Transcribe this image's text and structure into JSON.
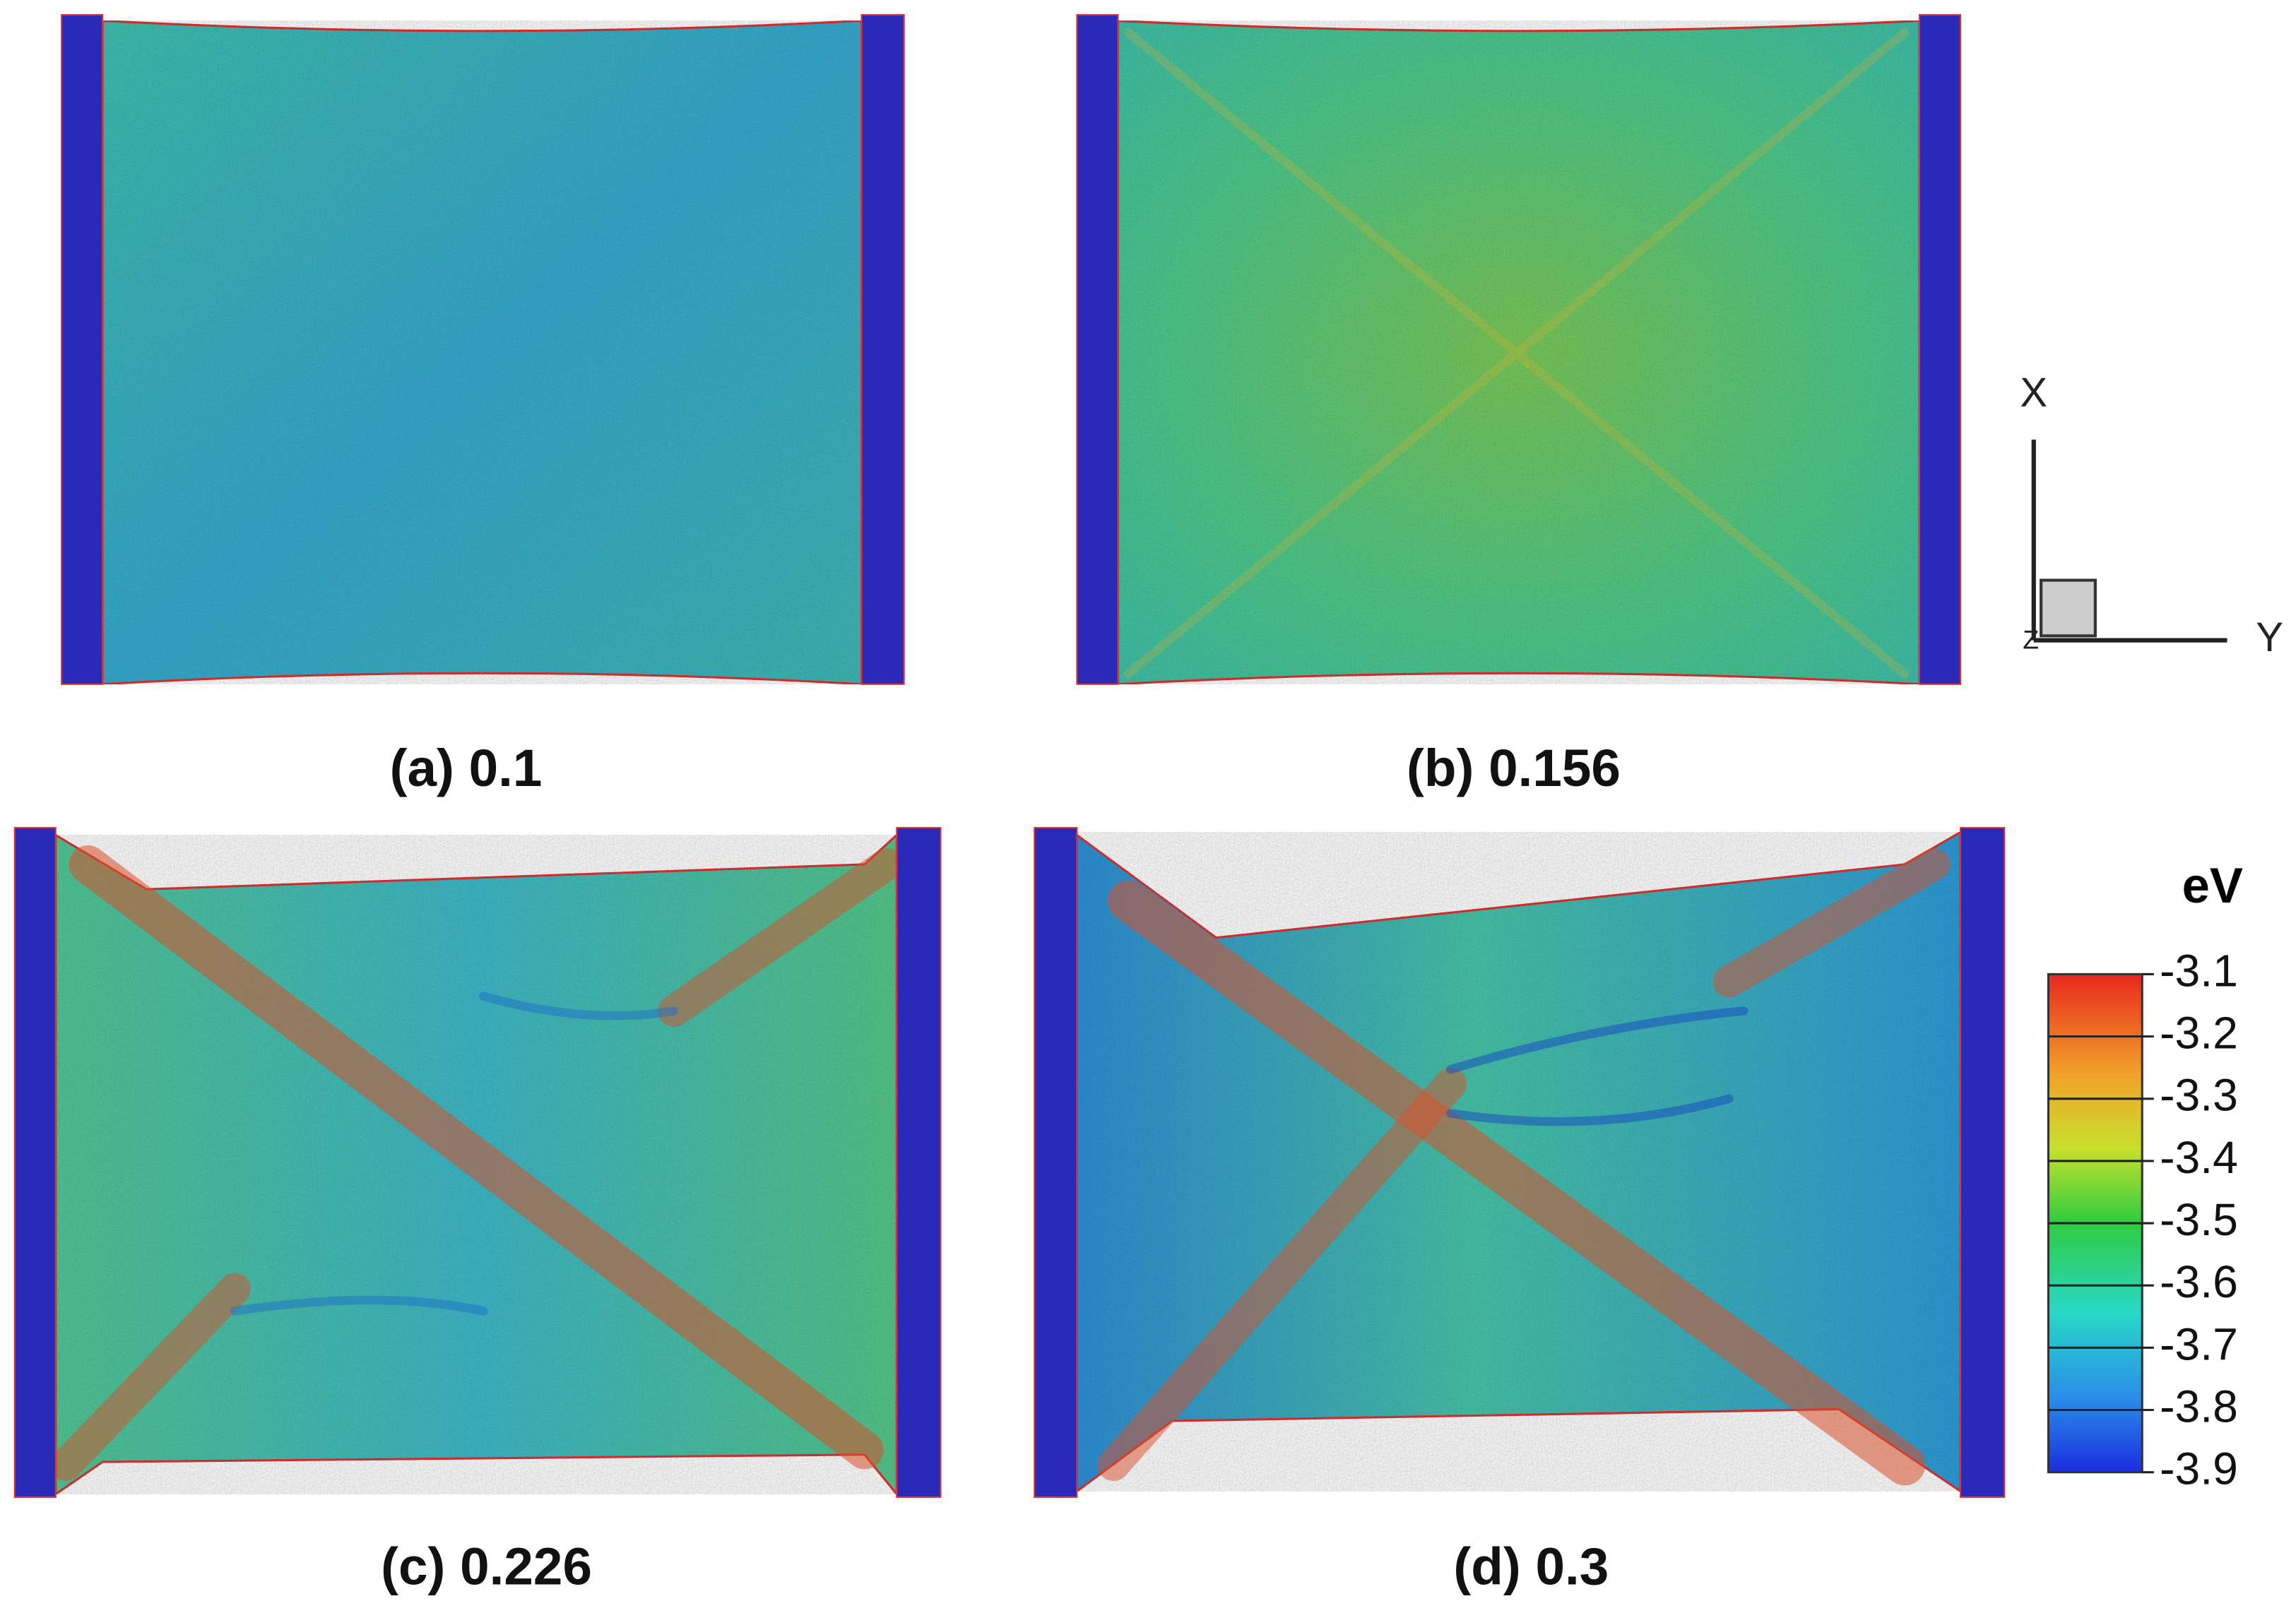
{
  "panels": [
    {
      "label": "(a) 0.1"
    },
    {
      "label": "(b) 0.156"
    },
    {
      "label": "(c) 0.226"
    },
    {
      "label": "(d) 0.3"
    }
  ],
  "axes": {
    "x": "X",
    "y": "Y",
    "z": "Z"
  },
  "colorbar": {
    "unit": "eV",
    "ticks": [
      "-3.1",
      "-3.2",
      "-3.3",
      "-3.4",
      "-3.5",
      "-3.6",
      "-3.7",
      "-3.8",
      "-3.9"
    ]
  }
}
